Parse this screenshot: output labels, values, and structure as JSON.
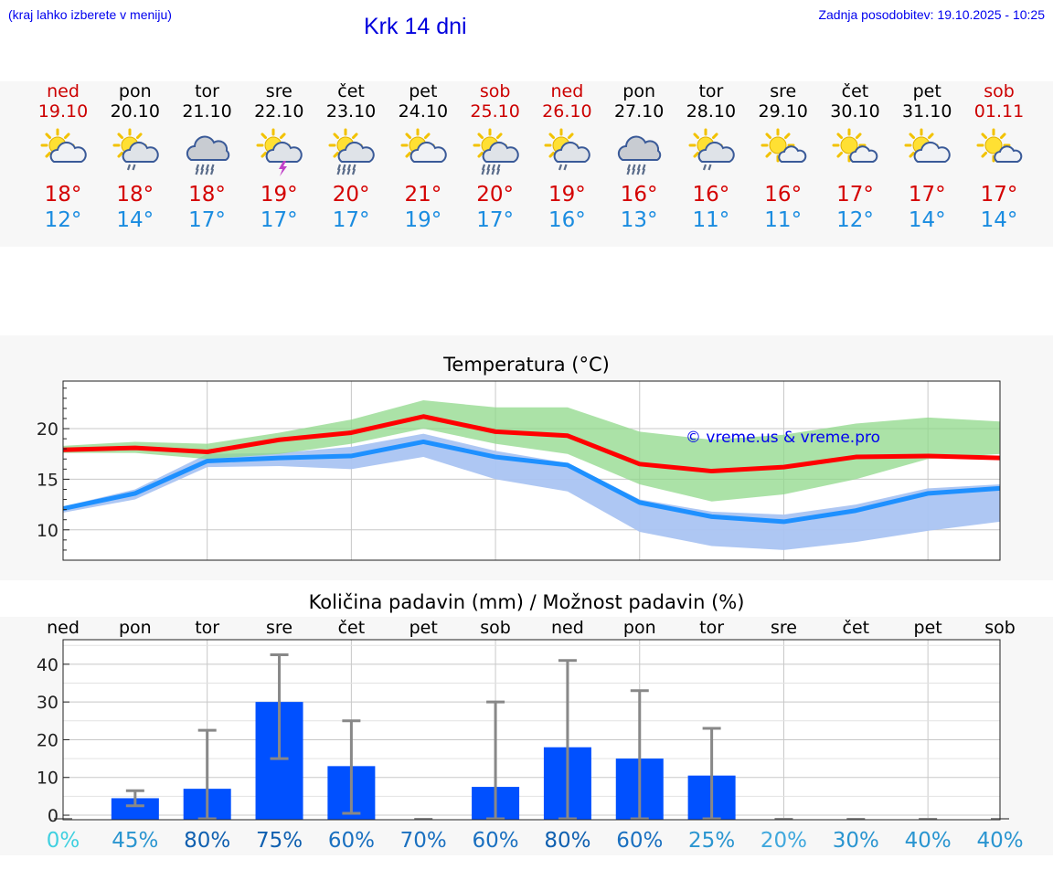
{
  "header": {
    "left_note": "(kraj lahko izberete v meniju)",
    "title": "Krk 14 dni",
    "updated": "Zadnja posodobitev: 19.10.2025 - 10:25"
  },
  "days": [
    {
      "name": "ned",
      "date": "19.10",
      "weekend": true,
      "icon": "sun-cloud",
      "tmax": "18°",
      "tmin": "12°"
    },
    {
      "name": "pon",
      "date": "20.10",
      "weekend": false,
      "icon": "sun-cloud-rain",
      "tmax": "18°",
      "tmin": "14°"
    },
    {
      "name": "tor",
      "date": "21.10",
      "weekend": false,
      "icon": "cloud-heavy-rain",
      "tmax": "18°",
      "tmin": "17°"
    },
    {
      "name": "sre",
      "date": "22.10",
      "weekend": false,
      "icon": "sun-thunder",
      "tmax": "19°",
      "tmin": "17°"
    },
    {
      "name": "čet",
      "date": "23.10",
      "weekend": false,
      "icon": "sun-cloud-heavy-rain",
      "tmax": "20°",
      "tmin": "17°"
    },
    {
      "name": "pet",
      "date": "24.10",
      "weekend": false,
      "icon": "sun-cloud",
      "tmax": "21°",
      "tmin": "19°"
    },
    {
      "name": "sob",
      "date": "25.10",
      "weekend": true,
      "icon": "sun-cloud-heavy-rain",
      "tmax": "20°",
      "tmin": "17°"
    },
    {
      "name": "ned",
      "date": "26.10",
      "weekend": true,
      "icon": "sun-cloud-rain",
      "tmax": "19°",
      "tmin": "16°"
    },
    {
      "name": "pon",
      "date": "27.10",
      "weekend": false,
      "icon": "cloud-heavy-rain",
      "tmax": "16°",
      "tmin": "13°"
    },
    {
      "name": "tor",
      "date": "28.10",
      "weekend": false,
      "icon": "sun-cloud-rain",
      "tmax": "16°",
      "tmin": "11°"
    },
    {
      "name": "sre",
      "date": "29.10",
      "weekend": false,
      "icon": "sun-cloud-small",
      "tmax": "16°",
      "tmin": "11°"
    },
    {
      "name": "čet",
      "date": "30.10",
      "weekend": false,
      "icon": "sun-cloud-small",
      "tmax": "17°",
      "tmin": "12°"
    },
    {
      "name": "pet",
      "date": "31.10",
      "weekend": false,
      "icon": "sun-cloud",
      "tmax": "17°",
      "tmin": "14°"
    },
    {
      "name": "sob",
      "date": "01.11",
      "weekend": true,
      "icon": "sun-cloud-small",
      "tmax": "17°",
      "tmin": "14°"
    }
  ],
  "colors": {
    "tmax": "#d40000",
    "tmin": "#1a8ce0",
    "weekend": "#cc0000",
    "max_line": "#ff0000",
    "min_line": "#1e90ff",
    "max_band": "#a8e6a0",
    "min_band": "#aac4f2",
    "bar": "#0050ff",
    "err": "#888888"
  },
  "watermark": "© vreme.us & vreme.pro",
  "chart_data": [
    {
      "type": "line",
      "title": "Temperatura (°C)",
      "ylim": [
        7,
        24.7
      ],
      "yticks": [
        10,
        15,
        20
      ],
      "x": [
        0,
        1,
        2,
        3,
        4,
        5,
        6,
        7,
        8,
        9,
        10,
        11,
        12,
        13
      ],
      "series": [
        {
          "name": "max",
          "values": [
            17.9,
            18.1,
            17.7,
            18.9,
            19.6,
            21.2,
            19.7,
            19.3,
            16.5,
            15.8,
            16.2,
            17.2,
            17.3,
            17.1
          ]
        },
        {
          "name": "min",
          "values": [
            12.1,
            13.6,
            16.8,
            17.1,
            17.3,
            18.7,
            17.2,
            16.4,
            12.7,
            11.3,
            10.8,
            11.9,
            13.6,
            14.1
          ]
        }
      ],
      "max_band": {
        "upper": [
          18.3,
          18.7,
          18.5,
          19.6,
          20.9,
          22.8,
          22.1,
          22.1,
          19.7,
          18.9,
          19.4,
          20.5,
          21.1,
          20.7
        ],
        "lower": [
          17.6,
          17.6,
          17.0,
          17.5,
          18.5,
          20.0,
          18.5,
          17.5,
          14.5,
          12.8,
          13.5,
          15.0,
          17.0,
          17.5
        ]
      },
      "min_band": {
        "upper": [
          12.3,
          14.0,
          17.5,
          17.6,
          18.2,
          19.5,
          17.8,
          16.6,
          13.0,
          11.8,
          11.5,
          12.5,
          14.1,
          14.5
        ],
        "lower": [
          11.7,
          13.0,
          16.2,
          16.3,
          16.0,
          17.2,
          15.0,
          13.8,
          9.8,
          8.4,
          8.0,
          8.8,
          9.9,
          10.8
        ]
      }
    },
    {
      "type": "bar",
      "title": "Količina padavin (mm) / Možnost padavin (%)",
      "ylim": [
        -1.2,
        46.5
      ],
      "yticks": [
        0,
        10,
        20,
        30,
        40
      ],
      "categories": [
        "ned",
        "pon",
        "tor",
        "sre",
        "čet",
        "pet",
        "sob",
        "ned",
        "pon",
        "tor",
        "sre",
        "čet",
        "pet",
        "sob"
      ],
      "values": [
        0,
        4.5,
        7,
        30,
        13,
        0,
        7.5,
        18,
        15,
        10.5,
        0,
        0,
        0,
        0
      ],
      "err_low": [
        0,
        2.5,
        0,
        15,
        0.5,
        0,
        0,
        0,
        0,
        0,
        0,
        0,
        0,
        0
      ],
      "err_high": [
        0,
        6.5,
        22.5,
        42.5,
        25,
        0,
        30,
        41,
        33,
        23,
        0,
        0,
        0,
        0
      ],
      "probability": [
        "0%",
        "45%",
        "80%",
        "75%",
        "60%",
        "70%",
        "60%",
        "80%",
        "60%",
        "25%",
        "20%",
        "30%",
        "40%",
        "40%"
      ],
      "probability_colors": [
        "#40d0e0",
        "#2a95d0",
        "#1060b0",
        "#1060b0",
        "#1a70c0",
        "#1a70c0",
        "#1a70c0",
        "#1060b0",
        "#1a70c0",
        "#2a95d0",
        "#40a8dd",
        "#2a95d0",
        "#2a95d0",
        "#2a95d0"
      ]
    }
  ]
}
